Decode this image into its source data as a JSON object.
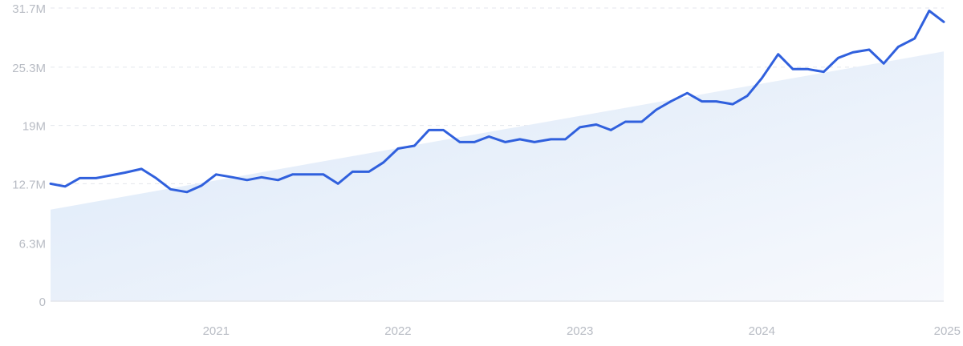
{
  "chart_data": {
    "type": "line",
    "title": "",
    "xlabel": "",
    "ylabel": "",
    "grid": true,
    "legend": "none",
    "y_ticks": [
      "0",
      "6.3M",
      "12.7M",
      "19M",
      "25.3M",
      "31.7M"
    ],
    "y_tick_values": [
      0,
      6.3,
      12.7,
      19,
      25.3,
      31.7
    ],
    "ylim": [
      0,
      31.7
    ],
    "x_ticks": [
      "2021",
      "2022",
      "2023",
      "2024",
      "2025"
    ],
    "x_tick_values": [
      2021,
      2022,
      2023,
      2024,
      2025
    ],
    "xlim": [
      2020.09,
      2025
    ],
    "unit": "M",
    "colors": {
      "line": "#3060dd",
      "trend_fill_start": "#dbe8f8",
      "trend_fill_end": "#f7f9fd"
    },
    "trend": {
      "x": [
        2020.09,
        2025
      ],
      "y": [
        9.9,
        27.0
      ]
    },
    "series": [
      {
        "x": [
          2020.09,
          2020.17,
          2020.25,
          2020.34,
          2020.42,
          2020.5,
          2020.59,
          2020.67,
          2020.75,
          2020.84,
          2020.92,
          2021.0,
          2021.09,
          2021.17,
          2021.25,
          2021.34,
          2021.42,
          2021.5,
          2021.59,
          2021.67,
          2021.75,
          2021.84,
          2021.92,
          2022.0,
          2022.09,
          2022.17,
          2022.25,
          2022.34,
          2022.42,
          2022.5,
          2022.59,
          2022.67,
          2022.75,
          2022.84,
          2022.92,
          2023.0,
          2023.09,
          2023.17,
          2023.25,
          2023.34,
          2023.42,
          2023.5,
          2023.59,
          2023.67,
          2023.75,
          2023.84,
          2023.92,
          2024.0,
          2024.09,
          2024.17,
          2024.25,
          2024.34,
          2024.42,
          2024.5,
          2024.59,
          2024.67,
          2024.75,
          2024.84,
          2024.92,
          2025.0
        ],
        "values": [
          12.7,
          12.4,
          13.3,
          13.3,
          13.6,
          13.9,
          14.3,
          13.3,
          12.1,
          11.8,
          12.5,
          13.7,
          13.4,
          13.1,
          13.4,
          13.1,
          13.7,
          13.7,
          13.7,
          12.7,
          14.0,
          14.0,
          15.0,
          16.5,
          16.8,
          18.5,
          18.5,
          17.2,
          17.2,
          17.8,
          17.2,
          17.5,
          17.2,
          17.5,
          17.5,
          18.8,
          19.1,
          18.5,
          19.4,
          19.4,
          20.7,
          21.6,
          22.5,
          21.6,
          21.6,
          21.3,
          22.2,
          24.1,
          26.7,
          25.1,
          25.1,
          24.8,
          26.3,
          26.9,
          27.2,
          25.7,
          27.5,
          28.4,
          31.4,
          30.2
        ]
      }
    ]
  }
}
